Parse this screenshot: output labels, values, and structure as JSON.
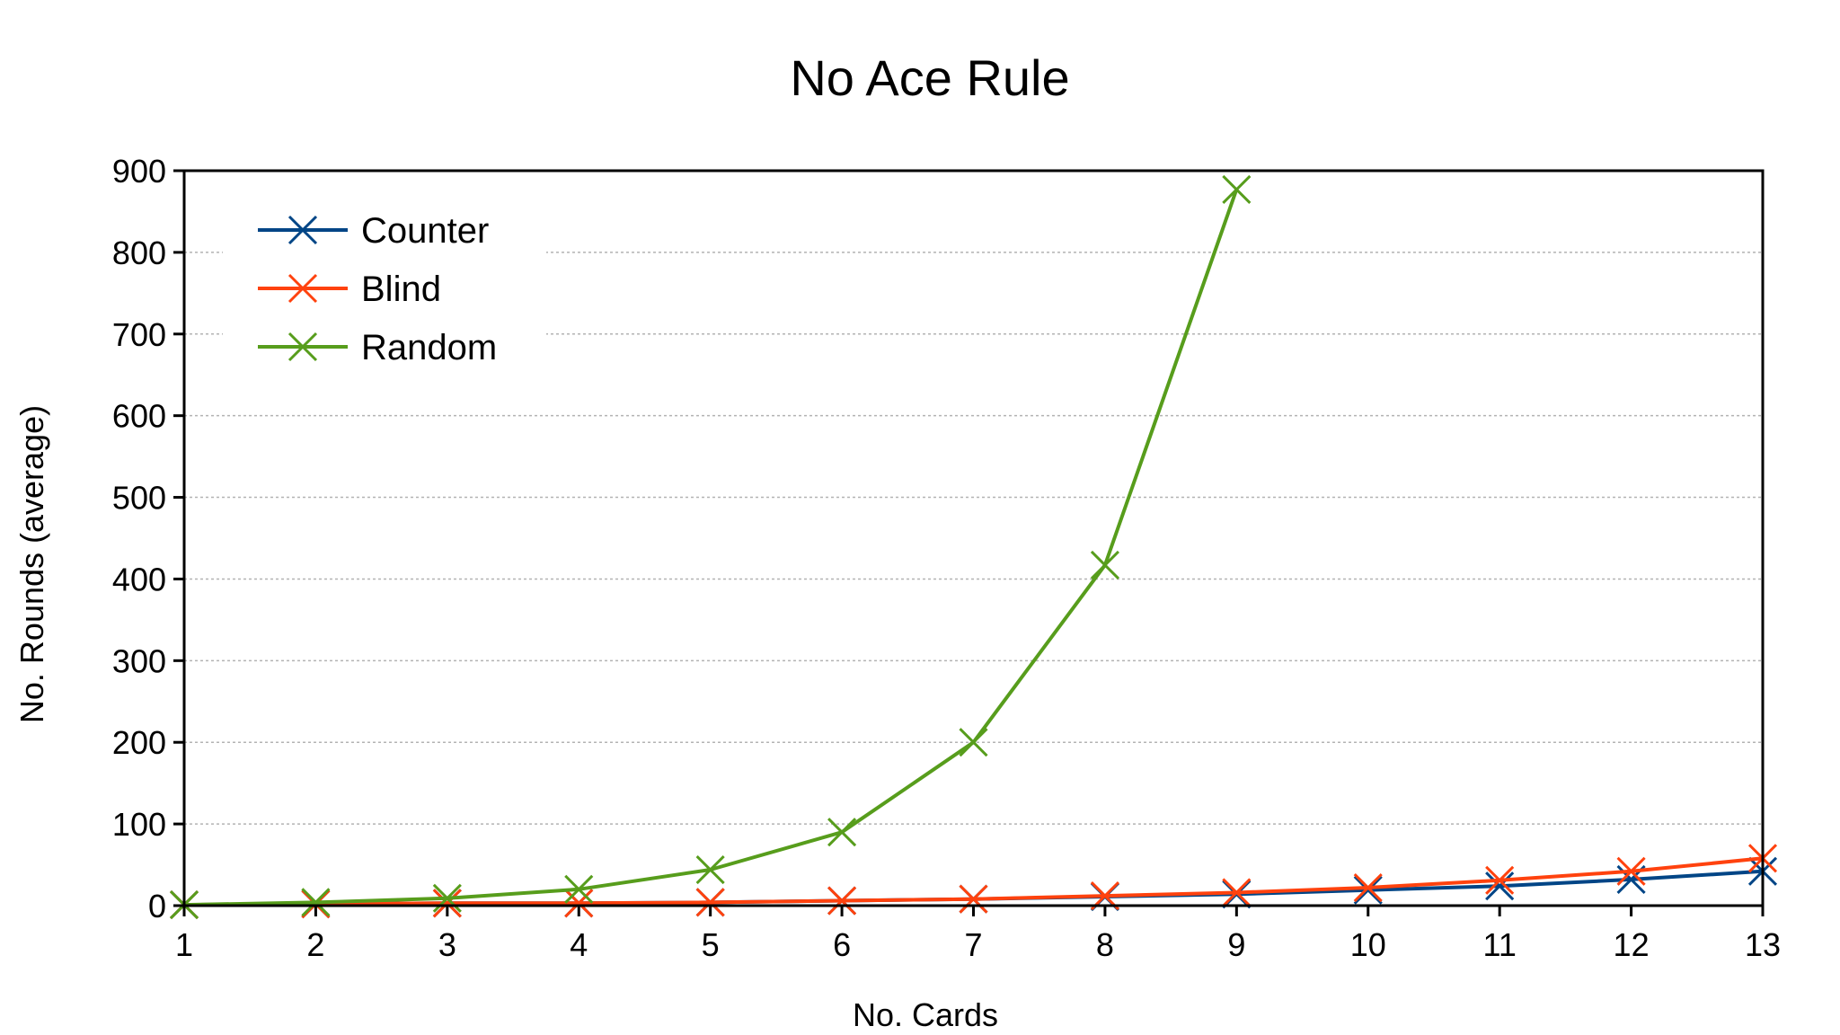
{
  "chart_data": {
    "type": "line",
    "title": "No Ace Rule",
    "xlabel": "No. Cards",
    "ylabel": "No. Rounds (average)",
    "x": [
      1,
      2,
      3,
      4,
      5,
      6,
      7,
      8,
      9,
      10,
      11,
      12,
      13
    ],
    "xlim": [
      1,
      13
    ],
    "ylim": [
      0,
      900
    ],
    "yticks": [
      0,
      100,
      200,
      300,
      400,
      500,
      600,
      700,
      800,
      900
    ],
    "grid": "horizontal dotted",
    "legend_position": "top-left",
    "marker": "x",
    "series": [
      {
        "name": "Counter",
        "color": "#004586",
        "values": [
          1,
          2,
          3,
          3,
          4,
          6,
          8,
          11,
          14,
          19,
          24,
          32,
          42
        ]
      },
      {
        "name": "Blind",
        "color": "#ff420e",
        "values": [
          1,
          2,
          3,
          3,
          4,
          6,
          8,
          12,
          16,
          22,
          31,
          42,
          58
        ]
      },
      {
        "name": "Random",
        "color": "#579d1c",
        "values": [
          1,
          4,
          9,
          20,
          44,
          90,
          200,
          417,
          877,
          null,
          null,
          null,
          null
        ]
      }
    ]
  }
}
